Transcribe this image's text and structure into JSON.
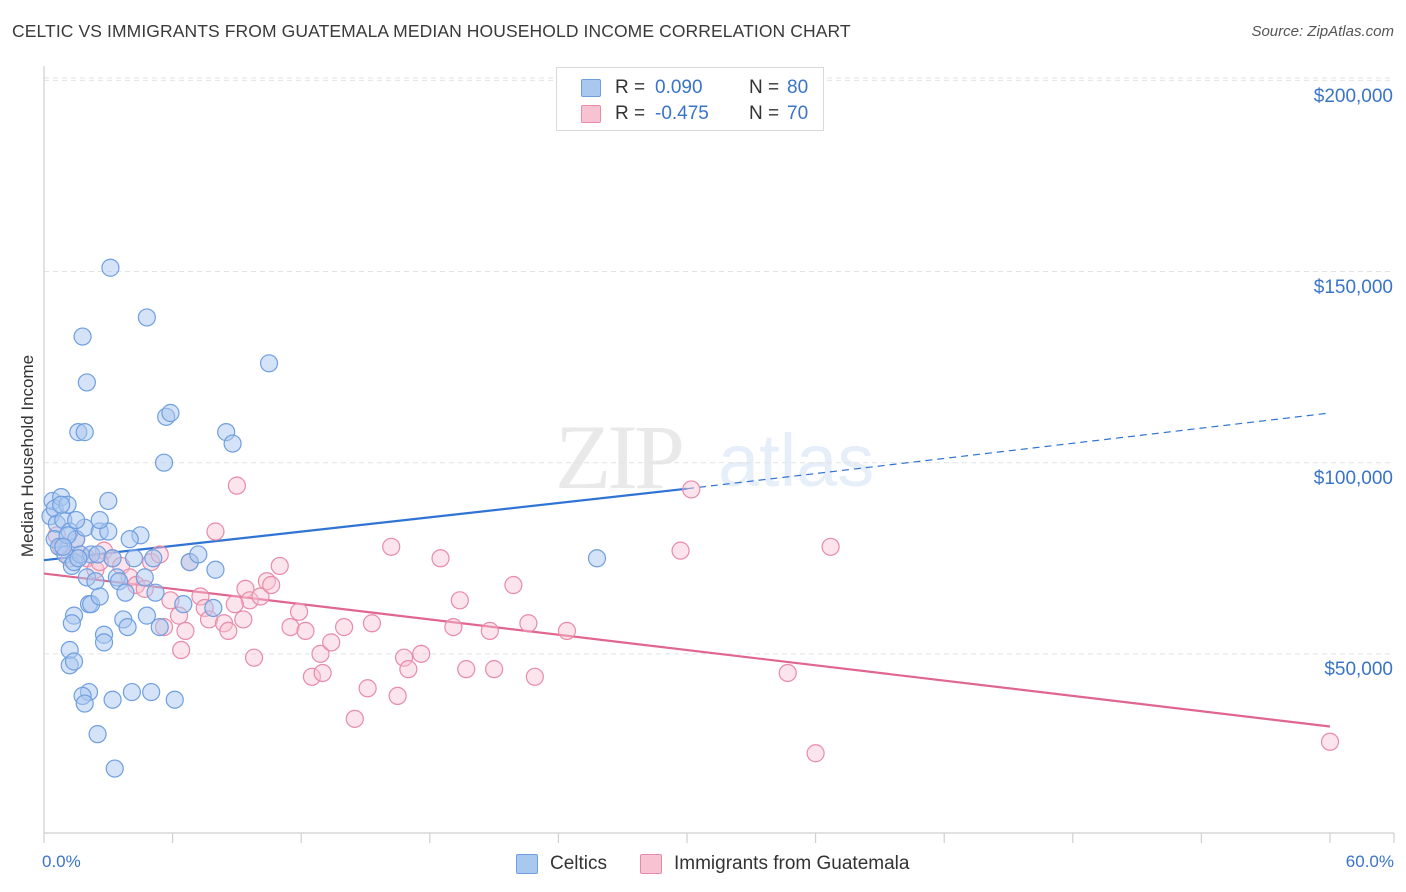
{
  "header": {
    "title": "CELTIC VS IMMIGRANTS FROM GUATEMALA MEDIAN HOUSEHOLD INCOME CORRELATION CHART",
    "source": "Source: ZipAtlas.com"
  },
  "stats": [
    {
      "r_label": "R =",
      "r_value": "0.090",
      "n_label": "N =",
      "n_value": "80",
      "color": "#a9c8f0",
      "border": "#6f9fe0"
    },
    {
      "r_label": "R =",
      "r_value": "-0.475",
      "n_label": "N =",
      "n_value": "70",
      "color": "#f7c3d3",
      "border": "#e98aa9"
    }
  ],
  "legend": {
    "celtics_label": "Celtics",
    "guatemala_label": "Immigrants from Guatemala"
  },
  "colors": {
    "blue_fill": "#a9c8f0",
    "blue_stroke": "#6f9fe0",
    "blue_line": "#2f73d4",
    "pink_fill": "#f7c3d3",
    "pink_stroke": "#e98aa9",
    "pink_line": "#e0668f",
    "tick_text": "#3a74c9"
  },
  "chart_data": {
    "type": "scatter",
    "title": "CELTIC VS IMMIGRANTS FROM GUATEMALA MEDIAN HOUSEHOLD INCOME CORRELATION CHART",
    "xlabel": "",
    "ylabel": "Median Household Income",
    "x_tick_labels": [
      "0.0%",
      "60.0%"
    ],
    "y_tick_labels": [
      "$50,000",
      "$100,000",
      "$150,000",
      "$200,000"
    ],
    "y_ticks": [
      50000,
      100000,
      150000,
      200000
    ],
    "xlim": [
      0,
      60
    ],
    "ylim": [
      0,
      205000
    ],
    "grid": true,
    "legend_position": "bottom",
    "series": [
      {
        "name": "Celtics",
        "r": 0.09,
        "n": 80,
        "trend": {
          "x": [
            0,
            30
          ],
          "y": [
            74500,
            93200
          ],
          "dashed_to": [
            60,
            113000
          ]
        },
        "points": [
          [
            0.3,
            86000
          ],
          [
            0.4,
            90000
          ],
          [
            0.5,
            88000
          ],
          [
            0.6,
            84000
          ],
          [
            0.5,
            80000
          ],
          [
            0.7,
            78000
          ],
          [
            0.8,
            91000
          ],
          [
            0.9,
            85000
          ],
          [
            1.0,
            76000
          ],
          [
            1.1,
            89000
          ],
          [
            1.2,
            82000
          ],
          [
            1.3,
            73000
          ],
          [
            1.4,
            74000
          ],
          [
            1.5,
            80000
          ],
          [
            1.7,
            76000
          ],
          [
            1.9,
            83000
          ],
          [
            2.0,
            70000
          ],
          [
            2.1,
            63000
          ],
          [
            1.4,
            60000
          ],
          [
            1.3,
            58000
          ],
          [
            1.2,
            51000
          ],
          [
            1.2,
            47000
          ],
          [
            1.4,
            48000
          ],
          [
            2.2,
            76000
          ],
          [
            2.5,
            76000
          ],
          [
            2.6,
            82000
          ],
          [
            2.4,
            69000
          ],
          [
            2.2,
            63000
          ],
          [
            2.6,
            65000
          ],
          [
            2.8,
            55000
          ],
          [
            2.8,
            53000
          ],
          [
            3.0,
            82000
          ],
          [
            3.0,
            90000
          ],
          [
            2.6,
            85000
          ],
          [
            3.2,
            75000
          ],
          [
            3.4,
            70000
          ],
          [
            3.5,
            69000
          ],
          [
            3.7,
            59000
          ],
          [
            3.8,
            66000
          ],
          [
            3.9,
            57000
          ],
          [
            4.2,
            75000
          ],
          [
            4.5,
            81000
          ],
          [
            4.7,
            70000
          ],
          [
            4.8,
            60000
          ],
          [
            5.1,
            75000
          ],
          [
            5.2,
            66000
          ],
          [
            5.4,
            57000
          ],
          [
            5.6,
            100000
          ],
          [
            5.7,
            112000
          ],
          [
            5.9,
            113000
          ],
          [
            6.1,
            38000
          ],
          [
            6.5,
            63000
          ],
          [
            6.8,
            74000
          ],
          [
            7.2,
            76000
          ],
          [
            7.9,
            62000
          ],
          [
            8.0,
            72000
          ],
          [
            8.5,
            108000
          ],
          [
            8.8,
            105000
          ],
          [
            10.5,
            126000
          ],
          [
            2.0,
            121000
          ],
          [
            1.8,
            133000
          ],
          [
            1.6,
            108000
          ],
          [
            1.9,
            108000
          ],
          [
            3.1,
            151000
          ],
          [
            4.8,
            138000
          ],
          [
            3.2,
            38000
          ],
          [
            4.1,
            40000
          ],
          [
            5.0,
            40000
          ],
          [
            2.1,
            40000
          ],
          [
            1.8,
            39000
          ],
          [
            1.9,
            37000
          ],
          [
            2.5,
            29000
          ],
          [
            3.3,
            20000
          ],
          [
            25.8,
            75000
          ],
          [
            0.8,
            89000
          ],
          [
            1.1,
            81000
          ],
          [
            1.6,
            75000
          ],
          [
            1.5,
            85000
          ],
          [
            4.0,
            80000
          ],
          [
            0.9,
            78000
          ]
        ]
      },
      {
        "name": "Immigrants from Guatemala",
        "r": -0.475,
        "n": 70,
        "trend": {
          "x": [
            0,
            60
          ],
          "y": [
            71000,
            31000
          ]
        },
        "points": [
          [
            0.6,
            81000
          ],
          [
            0.8,
            78000
          ],
          [
            1.2,
            75000
          ],
          [
            1.5,
            80000
          ],
          [
            2.0,
            75000
          ],
          [
            2.4,
            72000
          ],
          [
            2.8,
            77000
          ],
          [
            3.2,
            75000
          ],
          [
            3.6,
            73000
          ],
          [
            4.0,
            70000
          ],
          [
            4.3,
            68000
          ],
          [
            4.7,
            67000
          ],
          [
            5.0,
            74000
          ],
          [
            5.4,
            76000
          ],
          [
            5.9,
            64000
          ],
          [
            6.3,
            60000
          ],
          [
            6.6,
            56000
          ],
          [
            6.4,
            51000
          ],
          [
            6.8,
            74000
          ],
          [
            7.3,
            65000
          ],
          [
            7.5,
            62000
          ],
          [
            7.7,
            59000
          ],
          [
            8.0,
            82000
          ],
          [
            8.4,
            58000
          ],
          [
            8.6,
            56000
          ],
          [
            9.0,
            94000
          ],
          [
            9.3,
            59000
          ],
          [
            9.4,
            67000
          ],
          [
            9.6,
            64000
          ],
          [
            9.8,
            49000
          ],
          [
            10.1,
            65000
          ],
          [
            10.4,
            69000
          ],
          [
            10.6,
            68000
          ],
          [
            11.0,
            73000
          ],
          [
            11.5,
            57000
          ],
          [
            11.9,
            61000
          ],
          [
            12.2,
            56000
          ],
          [
            12.5,
            44000
          ],
          [
            12.9,
            50000
          ],
          [
            13.0,
            45000
          ],
          [
            13.4,
            53000
          ],
          [
            14.0,
            57000
          ],
          [
            14.5,
            33000
          ],
          [
            15.1,
            41000
          ],
          [
            15.3,
            58000
          ],
          [
            16.2,
            78000
          ],
          [
            16.5,
            39000
          ],
          [
            16.8,
            49000
          ],
          [
            17.0,
            46000
          ],
          [
            17.6,
            50000
          ],
          [
            18.5,
            75000
          ],
          [
            19.1,
            57000
          ],
          [
            19.4,
            64000
          ],
          [
            19.7,
            46000
          ],
          [
            20.8,
            56000
          ],
          [
            21.0,
            46000
          ],
          [
            21.9,
            68000
          ],
          [
            22.6,
            58000
          ],
          [
            22.9,
            44000
          ],
          [
            24.4,
            56000
          ],
          [
            29.7,
            77000
          ],
          [
            30.2,
            93000
          ],
          [
            34.7,
            45000
          ],
          [
            36.0,
            24000
          ],
          [
            36.7,
            78000
          ],
          [
            60.0,
            27000
          ],
          [
            1.7,
            76000
          ],
          [
            2.6,
            74000
          ],
          [
            5.6,
            57000
          ],
          [
            8.9,
            63000
          ]
        ]
      }
    ]
  }
}
